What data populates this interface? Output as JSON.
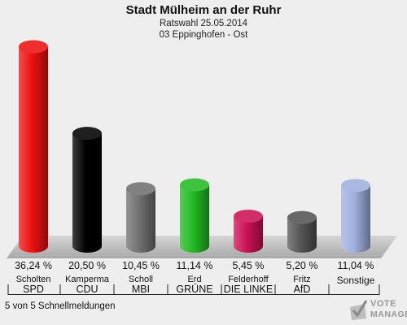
{
  "chart_data": {
    "type": "bar",
    "title": "Stadt Mülheim an der Ruhr",
    "subtitle": [
      "Ratswahl 25.05.2014",
      "03 Eppinghofen - Ost"
    ],
    "categories": [
      "SPD",
      "CDU",
      "MBI",
      "GRÜNE",
      "DIE LINKE",
      "AfD",
      "Sonstige"
    ],
    "candidates": [
      "Scholten",
      "Kamperma",
      "Scholl",
      "Erd",
      "Felderhoff",
      "Fritz",
      ""
    ],
    "values": [
      36.24,
      20.5,
      10.45,
      11.14,
      5.45,
      5.2,
      11.04
    ],
    "value_labels": [
      "36,24 %",
      "20,50 %",
      "10,45 %",
      "11,14 %",
      "5,45 %",
      "5,20 %",
      "11,04 %"
    ],
    "colors": [
      "#ee1111",
      "#000000",
      "#707070",
      "#22bb22",
      "#cc1155",
      "#555555",
      "#a0b0dd"
    ],
    "ylim": [
      0,
      40
    ],
    "grid": false
  },
  "footer": {
    "note": "5 von 5 Schnellmeldungen"
  },
  "logo": {
    "line1": "VOTE",
    "line2": "MANAGER"
  }
}
